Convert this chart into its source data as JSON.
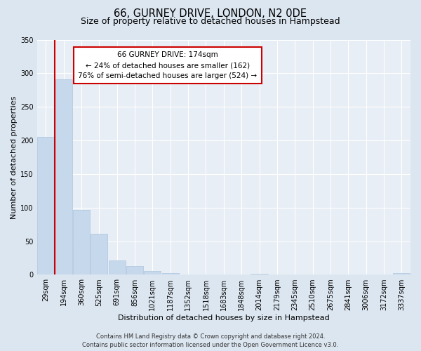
{
  "title": "66, GURNEY DRIVE, LONDON, N2 0DE",
  "subtitle": "Size of property relative to detached houses in Hampstead",
  "bar_labels": [
    "29sqm",
    "194sqm",
    "360sqm",
    "525sqm",
    "691sqm",
    "856sqm",
    "1021sqm",
    "1187sqm",
    "1352sqm",
    "1518sqm",
    "1683sqm",
    "1848sqm",
    "2014sqm",
    "2179sqm",
    "2345sqm",
    "2510sqm",
    "2675sqm",
    "2841sqm",
    "3006sqm",
    "3172sqm",
    "3337sqm"
  ],
  "bar_heights": [
    205,
    291,
    97,
    61,
    21,
    13,
    6,
    3,
    1,
    1,
    0,
    0,
    2,
    0,
    0,
    0,
    0,
    0,
    0,
    0,
    3
  ],
  "bar_color": "#c5d8ec",
  "bar_edge_color": "#adc4de",
  "property_line_color": "#cc0000",
  "ylim": [
    0,
    350
  ],
  "yticks": [
    0,
    50,
    100,
    150,
    200,
    250,
    300,
    350
  ],
  "ylabel": "Number of detached properties",
  "xlabel": "Distribution of detached houses by size in Hampstead",
  "annotation_title": "66 GURNEY DRIVE: 174sqm",
  "annotation_line1": "← 24% of detached houses are smaller (162)",
  "annotation_line2": "76% of semi-detached houses are larger (524) →",
  "annotation_box_facecolor": "#ffffff",
  "annotation_box_edgecolor": "#cc0000",
  "footer_line1": "Contains HM Land Registry data © Crown copyright and database right 2024.",
  "footer_line2": "Contains public sector information licensed under the Open Government Licence v3.0.",
  "fig_bg_color": "#dce6f0",
  "plot_bg_color": "#e8eef5",
  "grid_color": "#ffffff",
  "title_fontsize": 10.5,
  "subtitle_fontsize": 9,
  "axis_label_fontsize": 8,
  "tick_fontsize": 7,
  "annotation_fontsize": 7.5,
  "footer_fontsize": 6
}
